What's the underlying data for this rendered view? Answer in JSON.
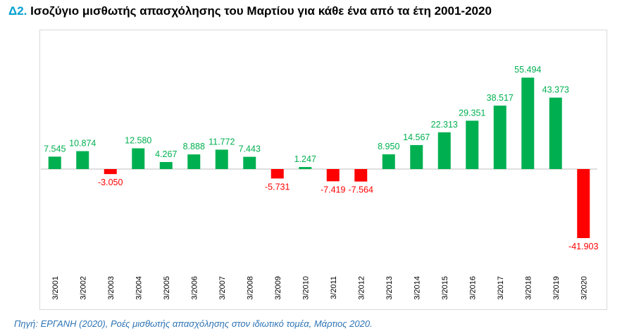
{
  "header": {
    "number": "Δ2.",
    "title": "Ισοζύγιο μισθωτής απασχόλησης του Μαρτίου για κάθε ένα από τα έτη 2001-2020"
  },
  "footer": {
    "source": "Πηγή: ΕΡΓΑΝΗ (2020), Ροές μισθωτής απασχόλησης στον ιδιωτικό τομέα, Μάρτιος 2020."
  },
  "chart_data": {
    "type": "bar",
    "title": "Ισοζύγιο μισθωτής απασχόλησης του Μαρτίου για κάθε ένα από τα έτη 2001-2020",
    "xlabel": "",
    "ylabel": "",
    "grid": false,
    "legend": "none",
    "ylim": [
      -50000,
      65000
    ],
    "categories": [
      "3/2001",
      "3/2002",
      "3/2003",
      "3/2004",
      "3/2005",
      "3/2006",
      "3/2007",
      "3/2008",
      "3/2009",
      "3/2010",
      "3/2011",
      "3/2012",
      "3/2013",
      "3/2014",
      "3/2015",
      "3/2016",
      "3/2017",
      "3/2018",
      "3/2019",
      "3/2020"
    ],
    "values": [
      7545,
      10874,
      -3050,
      12580,
      4267,
      8888,
      11772,
      7443,
      -5731,
      1247,
      -7419,
      -7564,
      8950,
      14567,
      22313,
      29351,
      38517,
      55494,
      43373,
      -41903
    ],
    "labels": [
      "7.545",
      "10.874",
      "-3.050",
      "12.580",
      "4.267",
      "8.888",
      "11.772",
      "7.443",
      "-5.731",
      "1.247",
      "-7.419",
      "-7.564",
      "8.950",
      "14.567",
      "22.313",
      "29.351",
      "38.517",
      "55.494",
      "43.373",
      "-41.903"
    ],
    "colors": {
      "positive": "#00b050",
      "negative": "#ff0000",
      "axis": "#bfbfbf"
    }
  }
}
